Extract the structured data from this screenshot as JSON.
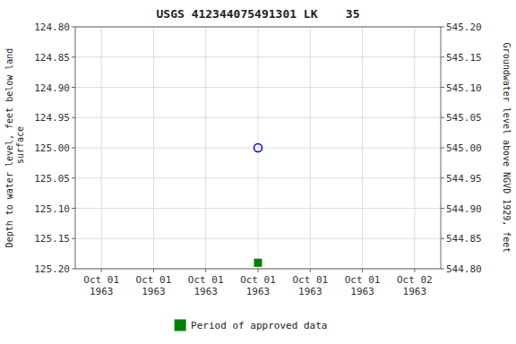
{
  "chart_data": {
    "type": "scatter",
    "title": "USGS 412344075491301 LK    35",
    "y_label": "Depth to water level, feet below land\n surface",
    "y2_label": "Groundwater level above NGVD 1929, feet",
    "categories": [
      "Oct 01\n1963",
      "Oct 01\n1963",
      "Oct 01\n1963",
      "Oct 01\n1963",
      "Oct 01\n1963",
      "Oct 01\n1963",
      "Oct 02\n1963"
    ],
    "series": [
      {
        "color": "blue",
        "marker": "circle-open",
        "values": [
          null,
          null,
          null,
          125.0,
          null,
          null,
          null
        ]
      },
      {
        "name": "Period of approved data",
        "color": "#008000",
        "marker": "square",
        "values": [
          null,
          null,
          null,
          125.19,
          null,
          null,
          null
        ]
      }
    ],
    "ylim": [
      125.2,
      124.8
    ],
    "yticks": [
      {
        "value": 124.8,
        "label": "124.80"
      },
      {
        "value": 124.85,
        "label": "124.85"
      },
      {
        "value": 124.9,
        "label": "124.90"
      },
      {
        "value": 124.95,
        "label": "124.95"
      },
      {
        "value": 125.0,
        "label": "125.00"
      },
      {
        "value": 125.05,
        "label": "125.05"
      },
      {
        "value": 125.1,
        "label": "125.10"
      },
      {
        "value": 125.15,
        "label": "125.15"
      },
      {
        "value": 125.2,
        "label": "125.20"
      }
    ],
    "y2lim": [
      544.8,
      545.2
    ],
    "y2ticks": [
      {
        "value": 545.2,
        "label": "545.20"
      },
      {
        "value": 545.15,
        "label": "545.15"
      },
      {
        "value": 545.1,
        "label": "545.10"
      },
      {
        "value": 545.05,
        "label": "545.05"
      },
      {
        "value": 545.0,
        "label": "545.00"
      },
      {
        "value": 544.95,
        "label": "544.95"
      },
      {
        "value": 544.9,
        "label": "544.90"
      },
      {
        "value": 544.85,
        "label": "544.85"
      },
      {
        "value": 544.8,
        "label": "544.80"
      }
    ],
    "grid": true,
    "legend": "bottom"
  }
}
